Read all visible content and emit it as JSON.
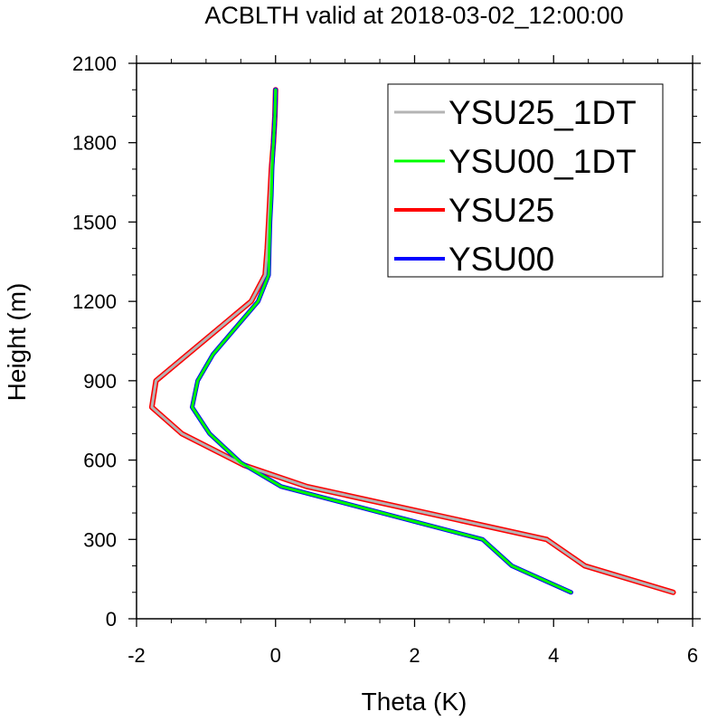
{
  "chart_data": {
    "type": "line",
    "title": "ACBLTH valid at 2018-03-02_12:00:00",
    "xlabel": "Theta (K)",
    "ylabel": "Height (m)",
    "xlim": [
      -2,
      6
    ],
    "ylim": [
      0,
      2100
    ],
    "x_ticks": [
      -2,
      0,
      2,
      4,
      6
    ],
    "y_ticks": [
      0,
      300,
      600,
      900,
      1200,
      1500,
      1800,
      2100
    ],
    "x_tick_labels": [
      "-2",
      "0",
      "2",
      "4",
      "6"
    ],
    "y_tick_labels": [
      "0",
      "300",
      "600",
      "900",
      "1200",
      "1500",
      "1800",
      "2100"
    ],
    "grid": false,
    "legend_position": "top-right",
    "series": [
      {
        "name": "YSU25_1DT",
        "color": "#b4b4b4",
        "points": [
          [
            5.72,
            100
          ],
          [
            4.45,
            200
          ],
          [
            3.9,
            300
          ],
          [
            0.45,
            500
          ],
          [
            -0.45,
            580
          ],
          [
            -1.35,
            700
          ],
          [
            -1.78,
            800
          ],
          [
            -1.72,
            900
          ],
          [
            -0.35,
            1200
          ],
          [
            -0.15,
            1300
          ],
          [
            -0.12,
            1400
          ],
          [
            -0.1,
            1500
          ],
          [
            -0.08,
            1600
          ],
          [
            -0.06,
            1700
          ],
          [
            -0.03,
            1800
          ],
          [
            -0.01,
            1900
          ],
          [
            0.0,
            2000
          ]
        ]
      },
      {
        "name": "YSU00_1DT",
        "color": "#00ff00",
        "points": [
          [
            4.25,
            100
          ],
          [
            3.4,
            200
          ],
          [
            2.98,
            300
          ],
          [
            0.08,
            500
          ],
          [
            -0.5,
            590
          ],
          [
            -0.95,
            700
          ],
          [
            -1.2,
            800
          ],
          [
            -1.12,
            900
          ],
          [
            -0.9,
            1000
          ],
          [
            -0.25,
            1200
          ],
          [
            -0.1,
            1300
          ],
          [
            -0.09,
            1400
          ],
          [
            -0.08,
            1500
          ],
          [
            -0.06,
            1600
          ],
          [
            -0.05,
            1700
          ],
          [
            -0.03,
            1800
          ],
          [
            -0.01,
            1900
          ],
          [
            0.0,
            2000
          ]
        ]
      },
      {
        "name": "YSU25",
        "color": "#ff0000",
        "points": [
          [
            5.72,
            100
          ],
          [
            4.45,
            200
          ],
          [
            3.9,
            300
          ],
          [
            0.45,
            500
          ],
          [
            -0.45,
            580
          ],
          [
            -1.35,
            700
          ],
          [
            -1.78,
            800
          ],
          [
            -1.72,
            900
          ],
          [
            -0.35,
            1200
          ],
          [
            -0.15,
            1300
          ],
          [
            -0.12,
            1400
          ],
          [
            -0.1,
            1500
          ],
          [
            -0.08,
            1600
          ],
          [
            -0.06,
            1700
          ],
          [
            -0.03,
            1800
          ],
          [
            -0.01,
            1900
          ],
          [
            0.0,
            2000
          ]
        ]
      },
      {
        "name": "YSU00",
        "color": "#0000ff",
        "points": [
          [
            4.25,
            100
          ],
          [
            3.4,
            200
          ],
          [
            2.98,
            300
          ],
          [
            0.08,
            500
          ],
          [
            -0.5,
            590
          ],
          [
            -0.95,
            700
          ],
          [
            -1.2,
            800
          ],
          [
            -1.12,
            900
          ],
          [
            -0.9,
            1000
          ],
          [
            -0.25,
            1200
          ],
          [
            -0.1,
            1300
          ],
          [
            -0.09,
            1400
          ],
          [
            -0.08,
            1500
          ],
          [
            -0.06,
            1600
          ],
          [
            -0.05,
            1700
          ],
          [
            -0.03,
            1800
          ],
          [
            -0.01,
            1900
          ],
          [
            0.0,
            2000
          ]
        ]
      }
    ]
  }
}
